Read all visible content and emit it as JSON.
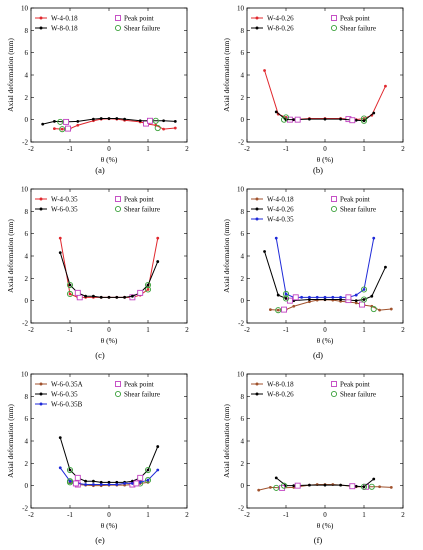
{
  "markers": {
    "peak_color": "#c040c0",
    "shear_color": "#3aa03a"
  },
  "chart_data": [
    {
      "type": "line",
      "panel_label": "(a)",
      "xlabel": "θ (%)",
      "ylabel": "Axial deformation (mm)",
      "xlim": [
        -2,
        2
      ],
      "ylim": [
        -2,
        10
      ],
      "xticks": [
        "-2",
        "-1",
        "0",
        "1",
        "2"
      ],
      "yticks": [
        "-2",
        "0",
        "2",
        "4",
        "6",
        "8",
        "10"
      ],
      "legend_placement": "top",
      "series": [
        {
          "name": "W-4-0.18",
          "color": "#e0282e",
          "marker": "dot",
          "x": [
            -1.4,
            -1.2,
            -1.0,
            -0.8,
            -0.4,
            -0.2,
            0,
            0.2,
            0.4,
            0.8,
            1.0,
            1.2,
            1.4,
            1.7
          ],
          "y": [
            -0.8,
            -0.85,
            -0.8,
            -0.5,
            -0.1,
            0.05,
            0.08,
            0.05,
            -0.05,
            -0.2,
            -0.4,
            -0.5,
            -0.85,
            -0.75
          ],
          "peak": [
            [
              -1.05,
              -0.8
            ],
            [
              0.95,
              -0.35
            ]
          ],
          "shear": [
            [
              -1.2,
              -0.85
            ],
            [
              1.25,
              -0.75
            ]
          ]
        },
        {
          "name": "W-8-0.18",
          "color": "#000000",
          "marker": "dot",
          "x": [
            -1.7,
            -1.4,
            -1.1,
            -0.8,
            -0.4,
            -0.2,
            0,
            0.2,
            0.4,
            0.8,
            1.1,
            1.4,
            1.7
          ],
          "y": [
            -0.4,
            -0.15,
            -0.2,
            -0.15,
            0.05,
            0.1,
            0.1,
            0.1,
            0.05,
            -0.1,
            -0.1,
            -0.1,
            -0.15
          ],
          "peak": [
            [
              -1.1,
              -0.2
            ],
            [
              1.05,
              -0.1
            ]
          ],
          "shear": [
            [
              -1.25,
              -0.2
            ],
            [
              1.2,
              -0.1
            ]
          ]
        }
      ]
    },
    {
      "type": "line",
      "panel_label": "(b)",
      "xlabel": "θ (%)",
      "ylabel": "Axial deformation (mm)",
      "xlim": [
        -2,
        2
      ],
      "ylim": [
        -2,
        10
      ],
      "xticks": [
        "-2",
        "-1",
        "0",
        "1",
        "2"
      ],
      "yticks": [
        "-2",
        "0",
        "2",
        "4",
        "6",
        "8",
        "10"
      ],
      "legend_placement": "top",
      "series": [
        {
          "name": "W-4-0.26",
          "color": "#e0282e",
          "marker": "dot",
          "x": [
            -1.55,
            -1.2,
            -1.0,
            -0.8,
            -0.4,
            0,
            0.4,
            0.8,
            1.0,
            1.2,
            1.55
          ],
          "y": [
            4.4,
            0.5,
            0.2,
            0.0,
            0.1,
            0.1,
            0.1,
            0.0,
            0.1,
            0.4,
            3.0
          ],
          "peak": [
            [
              -0.9,
              0.0
            ],
            [
              0.6,
              0.05
            ]
          ],
          "shear": [
            [
              -1.0,
              0.2
            ],
            [
              1.0,
              0.1
            ]
          ]
        },
        {
          "name": "W-8-0.26",
          "color": "#000000",
          "marker": "dot",
          "x": [
            -1.25,
            -1.0,
            -0.8,
            -0.4,
            0,
            0.4,
            0.8,
            1.0,
            1.25
          ],
          "y": [
            0.7,
            0.0,
            0.0,
            0.05,
            0.05,
            0.05,
            -0.05,
            -0.1,
            0.6
          ],
          "peak": [
            [
              -0.7,
              0.0
            ],
            [
              0.7,
              -0.05
            ]
          ],
          "shear": [
            [
              -1.05,
              0.0
            ],
            [
              1.0,
              -0.1
            ]
          ]
        }
      ]
    },
    {
      "type": "line",
      "panel_label": "(c)",
      "xlabel": "θ (%)",
      "ylabel": "Axial deformation (mm)",
      "xlim": [
        -2,
        2
      ],
      "ylim": [
        -2,
        10
      ],
      "xticks": [
        "-2",
        "-1",
        "0",
        "1",
        "2"
      ],
      "yticks": [
        "-2",
        "0",
        "2",
        "4",
        "6",
        "8",
        "10"
      ],
      "legend_placement": "top",
      "series": [
        {
          "name": "W-4-0.35",
          "color": "#e0282e",
          "marker": "dot",
          "x": [
            -1.25,
            -1.0,
            -0.8,
            -0.6,
            -0.4,
            -0.2,
            0,
            0.2,
            0.4,
            0.6,
            0.8,
            1.0,
            1.25
          ],
          "y": [
            5.6,
            0.6,
            0.3,
            0.3,
            0.3,
            0.3,
            0.3,
            0.3,
            0.3,
            0.3,
            0.5,
            1.0,
            5.6
          ],
          "peak": [
            [
              -0.75,
              0.3
            ],
            [
              0.6,
              0.3
            ]
          ],
          "shear": [
            [
              -1.0,
              0.6
            ],
            [
              1.0,
              1.0
            ]
          ]
        },
        {
          "name": "W-6-0.35",
          "color": "#000000",
          "marker": "dot",
          "x": [
            -1.25,
            -1.0,
            -0.8,
            -0.6,
            -0.4,
            -0.2,
            0,
            0.2,
            0.4,
            0.6,
            0.8,
            1.0,
            1.25
          ],
          "y": [
            4.3,
            1.4,
            0.7,
            0.4,
            0.4,
            0.3,
            0.3,
            0.3,
            0.3,
            0.4,
            0.7,
            1.4,
            3.5
          ],
          "peak": [
            [
              -0.8,
              0.7
            ],
            [
              0.8,
              0.7
            ]
          ],
          "shear": [
            [
              -1.0,
              1.4
            ],
            [
              1.0,
              1.4
            ]
          ]
        }
      ]
    },
    {
      "type": "line",
      "panel_label": "(d)",
      "xlabel": "θ (%)",
      "ylabel": "Axial deformation (mm)",
      "xlim": [
        -2,
        2
      ],
      "ylim": [
        -2,
        10
      ],
      "xticks": [
        "-2",
        "-1",
        "0",
        "1",
        "2"
      ],
      "yticks": [
        "-2",
        "0",
        "2",
        "4",
        "6",
        "8",
        "10"
      ],
      "legend_placement": "top",
      "series": [
        {
          "name": "W-4-0.18",
          "color": "#a0522d",
          "marker": "dot",
          "x": [
            -1.4,
            -1.2,
            -1.0,
            -0.8,
            -0.4,
            -0.2,
            0,
            0.2,
            0.4,
            0.8,
            1.0,
            1.2,
            1.4,
            1.7
          ],
          "y": [
            -0.8,
            -0.85,
            -0.8,
            -0.5,
            -0.1,
            0.05,
            0.08,
            0.05,
            -0.05,
            -0.2,
            -0.4,
            -0.5,
            -0.85,
            -0.75
          ],
          "peak": [
            [
              -1.05,
              -0.8
            ],
            [
              0.95,
              -0.35
            ]
          ],
          "shear": [
            [
              -1.2,
              -0.85
            ],
            [
              1.25,
              -0.75
            ]
          ]
        },
        {
          "name": "W-4-0.26",
          "color": "#000000",
          "marker": "dot",
          "x": [
            -1.55,
            -1.2,
            -1.0,
            -0.8,
            -0.4,
            0,
            0.4,
            0.8,
            1.0,
            1.2,
            1.55
          ],
          "y": [
            4.4,
            0.5,
            0.2,
            0.0,
            0.1,
            0.1,
            0.1,
            0.0,
            0.1,
            0.4,
            3.0
          ],
          "peak": [
            [
              -0.9,
              0.0
            ],
            [
              0.6,
              0.05
            ]
          ],
          "shear": [
            [
              -1.0,
              0.2
            ],
            [
              1.0,
              0.1
            ]
          ]
        },
        {
          "name": "W-4-0.35",
          "color": "#1f2ad8",
          "marker": "dot",
          "x": [
            -1.25,
            -1.0,
            -0.8,
            -0.6,
            -0.4,
            -0.2,
            0,
            0.2,
            0.4,
            0.6,
            0.8,
            1.0,
            1.25
          ],
          "y": [
            5.6,
            0.6,
            0.3,
            0.3,
            0.3,
            0.3,
            0.3,
            0.3,
            0.3,
            0.3,
            0.5,
            1.0,
            5.6
          ],
          "peak": [
            [
              -0.75,
              0.3
            ],
            [
              0.6,
              0.3
            ]
          ],
          "shear": [
            [
              -1.0,
              0.6
            ],
            [
              1.0,
              1.0
            ]
          ]
        }
      ]
    },
    {
      "type": "line",
      "panel_label": "(e)",
      "xlabel": "θ (%)",
      "ylabel": "Axial deformation (mm)",
      "xlim": [
        -2,
        2
      ],
      "ylim": [
        -2,
        10
      ],
      "xticks": [
        "-2",
        "-1",
        "0",
        "1",
        "2"
      ],
      "yticks": [
        "-2",
        "0",
        "2",
        "4",
        "6",
        "8",
        "10"
      ],
      "legend_placement": "top",
      "series": [
        {
          "name": "W-6-0.35A",
          "color": "#a0522d",
          "marker": "dot",
          "x": [
            -1.0,
            -0.8,
            -0.6,
            -0.4,
            -0.2,
            0,
            0.2,
            0.4,
            0.6,
            0.8,
            1.0
          ],
          "y": [
            0.3,
            0.1,
            0.05,
            0.0,
            0.0,
            0.05,
            0.05,
            0.05,
            0.1,
            0.2,
            0.3
          ],
          "peak": [
            [
              -0.8,
              0.1
            ],
            [
              0.6,
              0.1
            ]
          ],
          "shear": [
            [
              -1.0,
              0.3
            ],
            [
              0.8,
              0.2
            ]
          ]
        },
        {
          "name": "W-6-0.35",
          "color": "#000000",
          "marker": "dot",
          "x": [
            -1.25,
            -1.0,
            -0.8,
            -0.6,
            -0.4,
            -0.2,
            0,
            0.2,
            0.4,
            0.6,
            0.8,
            1.0,
            1.25
          ],
          "y": [
            4.3,
            1.4,
            0.7,
            0.4,
            0.4,
            0.3,
            0.3,
            0.3,
            0.3,
            0.4,
            0.7,
            1.4,
            3.5
          ],
          "peak": [
            [
              -0.8,
              0.7
            ],
            [
              0.8,
              0.7
            ]
          ],
          "shear": [
            [
              -1.0,
              1.4
            ],
            [
              1.0,
              1.4
            ]
          ]
        },
        {
          "name": "W-6-0.35B",
          "color": "#1f2ad8",
          "marker": "dot",
          "x": [
            -1.25,
            -1.0,
            -0.8,
            -0.6,
            -0.4,
            -0.2,
            0,
            0.2,
            0.4,
            0.6,
            0.8,
            1.0,
            1.25
          ],
          "y": [
            1.6,
            0.4,
            0.2,
            0.1,
            0.1,
            0.1,
            0.1,
            0.1,
            0.2,
            0.2,
            0.3,
            0.5,
            1.4
          ],
          "peak": [
            [
              -0.85,
              0.2
            ],
            [
              0.7,
              0.2
            ]
          ],
          "shear": [
            [
              -1.0,
              0.4
            ],
            [
              1.0,
              0.5
            ]
          ]
        }
      ]
    },
    {
      "type": "line",
      "panel_label": "(f)",
      "xlabel": "θ (%)",
      "ylabel": "Axial deformation (mm)",
      "xlim": [
        -2,
        2
      ],
      "ylim": [
        -2,
        10
      ],
      "xticks": [
        "-2",
        "-1",
        "0",
        "1",
        "2"
      ],
      "yticks": [
        "-2",
        "0",
        "2",
        "4",
        "6",
        "8",
        "10"
      ],
      "legend_placement": "top",
      "series": [
        {
          "name": "W-8-0.18",
          "color": "#a0522d",
          "marker": "dot",
          "x": [
            -1.7,
            -1.4,
            -1.1,
            -0.8,
            -0.4,
            -0.2,
            0,
            0.2,
            0.4,
            0.8,
            1.1,
            1.4,
            1.7
          ],
          "y": [
            -0.4,
            -0.15,
            -0.2,
            -0.15,
            0.05,
            0.1,
            0.1,
            0.1,
            0.05,
            -0.1,
            -0.1,
            -0.1,
            -0.15
          ],
          "peak": [
            [
              -1.1,
              -0.2
            ],
            [
              1.05,
              -0.1
            ]
          ],
          "shear": [
            [
              -1.25,
              -0.2
            ],
            [
              1.2,
              -0.1
            ]
          ]
        },
        {
          "name": "W-8-0.26",
          "color": "#000000",
          "marker": "dot",
          "x": [
            -1.25,
            -1.0,
            -0.8,
            -0.4,
            0,
            0.4,
            0.8,
            1.0,
            1.25
          ],
          "y": [
            0.7,
            0.0,
            0.0,
            0.05,
            0.05,
            0.05,
            -0.05,
            -0.1,
            0.6
          ],
          "peak": [
            [
              -0.7,
              0.0
            ],
            [
              0.7,
              -0.05
            ]
          ],
          "shear": [
            [
              -1.05,
              0.0
            ],
            [
              1.0,
              -0.1
            ]
          ]
        }
      ]
    }
  ],
  "legend_common": {
    "peak_label": "Peak point",
    "shear_label": "Shear failure"
  }
}
